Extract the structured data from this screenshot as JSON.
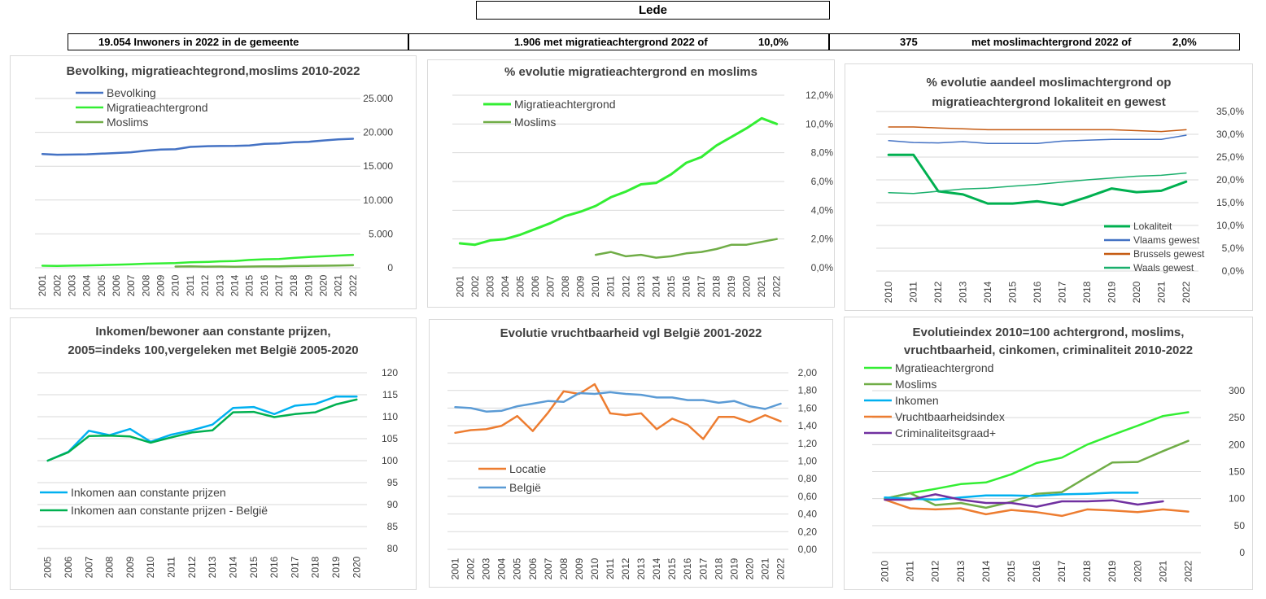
{
  "page_title": "Lede",
  "stats": {
    "inwoners": "19.054 Inwoners in 2022 in de gemeente",
    "migratie_count": "1.906 met migratieachtergrond 2022 of",
    "migratie_pct": "10,0%",
    "moslim_count": "375",
    "moslim_label": "met moslimachtergrond 2022 of",
    "moslim_pct": "2,0%"
  },
  "colors": {
    "blue": "#4472c4",
    "bright_green": "#33ee33",
    "olive_green": "#70ad47",
    "dark_green": "#00b050",
    "brown": "#c55a11",
    "cyan": "#00b0f0",
    "orange": "#ed7d31",
    "light_blue": "#5b9bd5",
    "purple": "#7030a0",
    "teal": "#1aaf6c",
    "grid": "#d9d9d9"
  },
  "chart_data": [
    {
      "type": "line",
      "title": [
        "Bevolking, migratieachtegrond,moslims  2010-2022"
      ],
      "x": [
        "2001",
        "2002",
        "2003",
        "2004",
        "2005",
        "2006",
        "2007",
        "2008",
        "2009",
        "2010",
        "2011",
        "2012",
        "2013",
        "2014",
        "2015",
        "2016",
        "2017",
        "2018",
        "2019",
        "2020",
        "2021",
        "2022"
      ],
      "ylim": [
        0,
        25000
      ],
      "yticks": [
        0,
        5000,
        10000,
        15000,
        20000,
        25000
      ],
      "ytick_labels": [
        "0",
        "5.000",
        "10.000",
        "15.000",
        "20.000",
        "25.000"
      ],
      "y_axis_side": "right",
      "legend_position": "top-left",
      "series": [
        {
          "name": "Bevolking",
          "color": "#4472c4",
          "width": 2.5,
          "values": [
            16800,
            16700,
            16720,
            16750,
            16850,
            16950,
            17050,
            17300,
            17450,
            17500,
            17850,
            17950,
            17980,
            17990,
            18050,
            18300,
            18350,
            18550,
            18600,
            18800,
            18950,
            19054
          ]
        },
        {
          "name": "Migratieachtergrond",
          "color": "#33ee33",
          "width": 2.5,
          "values": [
            300,
            280,
            310,
            350,
            400,
            450,
            520,
            600,
            650,
            700,
            800,
            850,
            950,
            1000,
            1150,
            1250,
            1300,
            1450,
            1600,
            1700,
            1800,
            1906
          ]
        },
        {
          "name": "Moslims",
          "color": "#70ad47",
          "width": 2.5,
          "values": [
            null,
            null,
            null,
            null,
            null,
            null,
            null,
            null,
            null,
            180,
            200,
            170,
            180,
            160,
            180,
            200,
            210,
            250,
            280,
            300,
            340,
            375
          ]
        }
      ]
    },
    {
      "type": "line",
      "title": [
        "% evolutie migratieachtergrond  en moslims"
      ],
      "x": [
        "2001",
        "2002",
        "2003",
        "2004",
        "2005",
        "2006",
        "2007",
        "2008",
        "2009",
        "2010",
        "2011",
        "2012",
        "2013",
        "2014",
        "2015",
        "2016",
        "2017",
        "2018",
        "2019",
        "2020",
        "2021",
        "2022"
      ],
      "ylim": [
        0,
        12
      ],
      "yticks": [
        0,
        2,
        4,
        6,
        8,
        10,
        12
      ],
      "ytick_labels": [
        "0,0%",
        "2,0%",
        "4,0%",
        "6,0%",
        "8,0%",
        "10,0%",
        "12,0%"
      ],
      "y_axis_side": "right",
      "legend_position": "top-left",
      "series": [
        {
          "name": "Migratieachtergrond",
          "color": "#33ee33",
          "width": 3,
          "values": [
            1.7,
            1.6,
            1.9,
            2.0,
            2.3,
            2.7,
            3.1,
            3.6,
            3.9,
            4.3,
            4.9,
            5.3,
            5.8,
            5.9,
            6.5,
            7.3,
            7.7,
            8.5,
            9.1,
            9.7,
            10.4,
            10.0
          ]
        },
        {
          "name": "Moslims",
          "color": "#70ad47",
          "width": 2.5,
          "values": [
            null,
            null,
            null,
            null,
            null,
            null,
            null,
            null,
            null,
            0.9,
            1.1,
            0.8,
            0.9,
            0.7,
            0.8,
            1.0,
            1.1,
            1.3,
            1.6,
            1.6,
            1.8,
            2.0
          ]
        }
      ]
    },
    {
      "type": "line",
      "title": [
        "% evolutie aandeel moslimachtergrond op",
        "migratieachtergrond lokaliteit en gewest"
      ],
      "x": [
        "2010",
        "2011",
        "2012",
        "2013",
        "2014",
        "2015",
        "2016",
        "2017",
        "2018",
        "2019",
        "2020",
        "2021",
        "2022"
      ],
      "ylim": [
        0,
        35
      ],
      "yticks": [
        0,
        5,
        10,
        15,
        20,
        25,
        30,
        35
      ],
      "ytick_labels": [
        "0,0%",
        "5,0%",
        "10,0%",
        "15,0%",
        "20,0%",
        "25,0%",
        "30,0%",
        "35,0%"
      ],
      "y_axis_side": "right",
      "legend_position": "bottom-right",
      "series": [
        {
          "name": "Lokaliteit",
          "color": "#00b050",
          "width": 3,
          "values": [
            25.5,
            25.5,
            17.5,
            16.8,
            14.8,
            14.8,
            15.3,
            14.5,
            16.2,
            18.1,
            17.3,
            17.6,
            19.6
          ]
        },
        {
          "name": "Vlaams gewest",
          "color": "#4472c4",
          "width": 1.5,
          "values": [
            28.6,
            28.2,
            28.1,
            28.4,
            28.0,
            28.0,
            28.0,
            28.5,
            28.7,
            28.9,
            28.9,
            28.9,
            29.8
          ]
        },
        {
          "name": "Brussels gewest",
          "color": "#c55a11",
          "width": 1.5,
          "values": [
            31.6,
            31.6,
            31.4,
            31.2,
            31.0,
            31.0,
            31.0,
            31.0,
            31.0,
            31.0,
            30.8,
            30.6,
            31.0
          ]
        },
        {
          "name": "Waals gewest",
          "color": "#1aaf6c",
          "width": 1.5,
          "values": [
            17.2,
            17.0,
            17.5,
            18.0,
            18.2,
            18.6,
            19.0,
            19.5,
            20.0,
            20.4,
            20.8,
            21.0,
            21.5
          ]
        }
      ]
    },
    {
      "type": "line",
      "title": [
        "Inkomen/bewoner aan constante prijzen,",
        "2005=indeks 100,vergeleken met België 2005-2020"
      ],
      "x": [
        "2005",
        "2006",
        "2007",
        "2008",
        "2009",
        "2010",
        "2011",
        "2012",
        "2013",
        "2014",
        "2015",
        "2016",
        "2017",
        "2018",
        "2019",
        "2020"
      ],
      "ylim": [
        80,
        120
      ],
      "yticks": [
        80,
        85,
        90,
        95,
        100,
        105,
        110,
        115,
        120
      ],
      "ytick_labels": [
        "80",
        "85",
        "90",
        "95",
        "100",
        "105",
        "110",
        "115",
        "120"
      ],
      "y_axis_side": "right",
      "legend_position": "bottom-left",
      "series": [
        {
          "name": "Inkomen aan constante prijzen",
          "color": "#00b0f0",
          "width": 2.5,
          "values": [
            100,
            102,
            106.8,
            105.8,
            107.2,
            104.3,
            105.9,
            106.9,
            108.2,
            112,
            112.2,
            110.6,
            112.5,
            112.9,
            114.6,
            114.6
          ]
        },
        {
          "name": "Inkomen aan constante prijzen - België",
          "color": "#00b050",
          "width": 2.5,
          "values": [
            100,
            101.9,
            105.6,
            105.7,
            105.5,
            104.1,
            105.3,
            106.4,
            106.9,
            111,
            111.1,
            109.9,
            110.6,
            111,
            112.8,
            113.9
          ]
        }
      ]
    },
    {
      "type": "line",
      "title": [
        "Evolutie vruchtbaarheid vgl België 2001-2022"
      ],
      "x": [
        "2001",
        "2002",
        "2003",
        "2004",
        "2005",
        "2006",
        "2007",
        "2008",
        "2009",
        "2010",
        "2011",
        "2012",
        "2013",
        "2014",
        "2015",
        "2016",
        "2017",
        "2018",
        "2019",
        "2020",
        "2021",
        "2022"
      ],
      "ylim": [
        0,
        2
      ],
      "yticks": [
        0,
        0.2,
        0.4,
        0.6,
        0.8,
        1.0,
        1.2,
        1.4,
        1.6,
        1.8,
        2.0
      ],
      "ytick_labels": [
        "0,00",
        "0,20",
        "0,40",
        "0,60",
        "0,80",
        "1,00",
        "1,20",
        "1,40",
        "1,60",
        "1,80",
        "2,00"
      ],
      "y_axis_side": "right",
      "legend_position": "bottom-left",
      "series": [
        {
          "name": "Locatie",
          "color": "#ed7d31",
          "width": 2.5,
          "values": [
            1.32,
            1.35,
            1.36,
            1.4,
            1.51,
            1.34,
            1.55,
            1.79,
            1.76,
            1.87,
            1.54,
            1.52,
            1.54,
            1.36,
            1.48,
            1.41,
            1.25,
            1.5,
            1.5,
            1.44,
            1.52,
            1.45
          ]
        },
        {
          "name": "België",
          "color": "#5b9bd5",
          "width": 2.5,
          "values": [
            1.61,
            1.6,
            1.56,
            1.57,
            1.62,
            1.65,
            1.68,
            1.67,
            1.77,
            1.76,
            1.78,
            1.76,
            1.75,
            1.72,
            1.72,
            1.69,
            1.69,
            1.66,
            1.68,
            1.62,
            1.59,
            1.65
          ]
        }
      ]
    },
    {
      "type": "line",
      "title": [
        "Evolutieindex 2010=100 achtergrond, moslims,",
        "vruchtbaarheid, cinkomen, criminaliteit  2010-2022"
      ],
      "x": [
        "2010",
        "2011",
        "2012",
        "2013",
        "2014",
        "2015",
        "2016",
        "2017",
        "2018",
        "2019",
        "2020",
        "2021",
        "2022"
      ],
      "ylim": [
        0,
        300
      ],
      "yticks": [
        0,
        50,
        100,
        150,
        200,
        250,
        300
      ],
      "ytick_labels": [
        "0",
        "50",
        "100",
        "150",
        "200",
        "250",
        "300"
      ],
      "y_axis_side": "right",
      "legend_position": "top-left",
      "series": [
        {
          "name": "Mgratieachtergrond",
          "color": "#33ee33",
          "width": 2.5,
          "values": [
            100,
            110,
            118,
            127,
            130,
            145,
            166,
            176,
            200,
            218,
            235,
            253,
            260
          ]
        },
        {
          "name": "Moslims",
          "color": "#70ad47",
          "width": 2.5,
          "values": [
            100,
            110,
            88,
            92,
            83,
            94,
            109,
            112,
            140,
            167,
            168,
            188,
            207
          ]
        },
        {
          "name": "Inkomen",
          "color": "#00b0f0",
          "width": 2.5,
          "values": [
            102,
            100,
            98,
            102,
            106,
            106,
            105,
            108,
            109,
            111,
            111,
            null,
            null
          ]
        },
        {
          "name": "Vruchtbaarheidsindex",
          "color": "#ed7d31",
          "width": 2.5,
          "values": [
            98,
            82,
            80,
            82,
            71,
            79,
            75,
            68,
            80,
            78,
            75,
            80,
            76
          ]
        },
        {
          "name": "Criminaliteitsgraad+",
          "color": "#7030a0",
          "width": 2.5,
          "values": [
            98,
            98,
            108,
            98,
            92,
            92,
            85,
            95,
            95,
            97,
            89,
            95,
            null
          ]
        }
      ]
    }
  ]
}
